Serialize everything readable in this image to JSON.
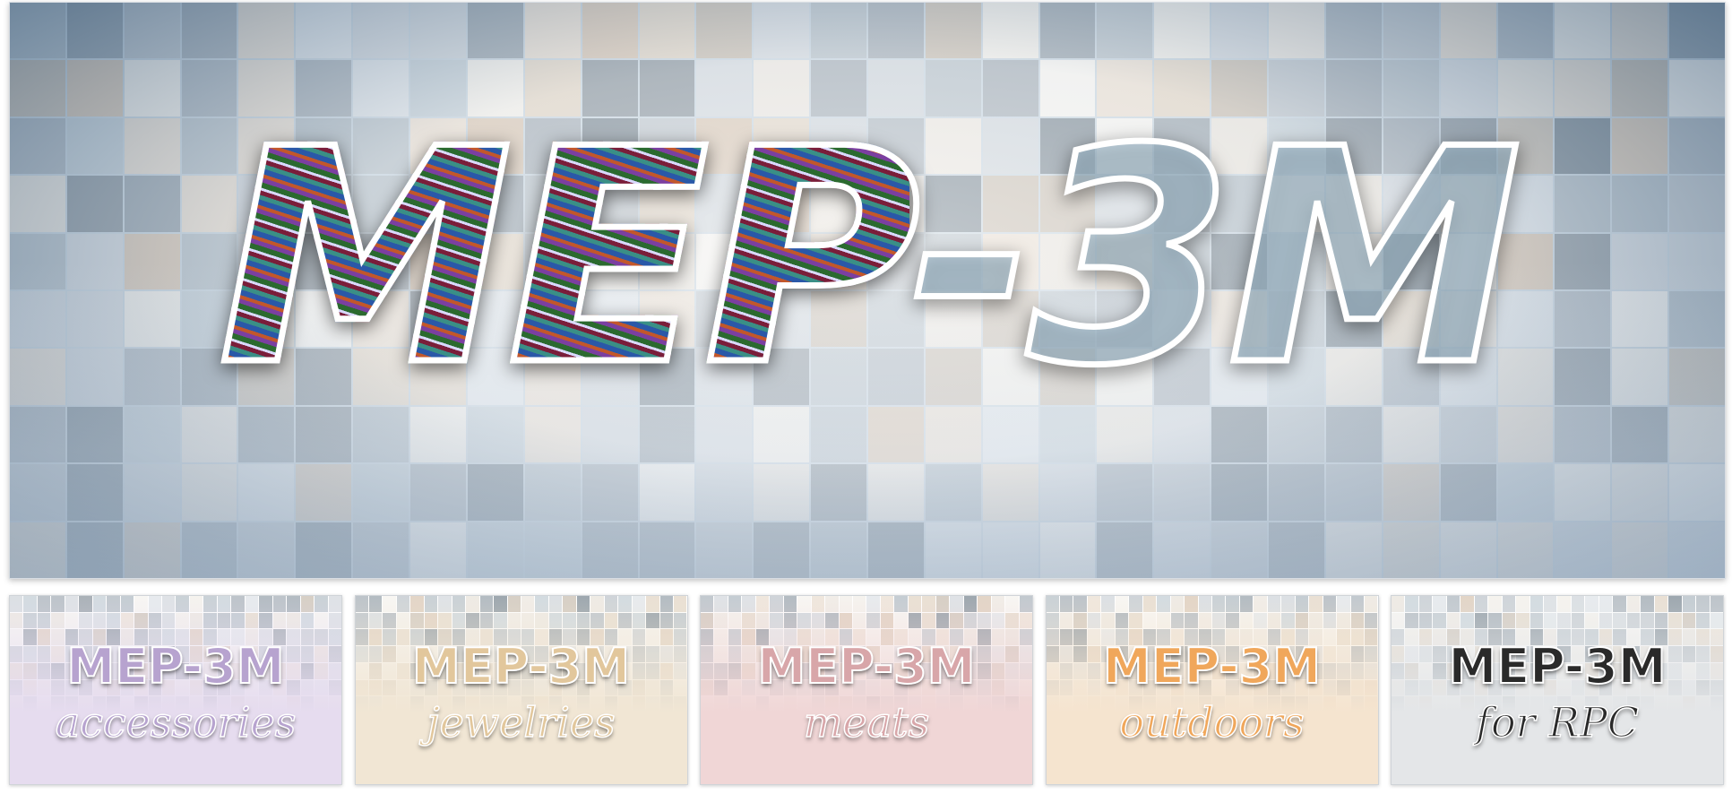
{
  "hero": {
    "title_left": "MEP",
    "title_right": "-3M",
    "title_fill_colors": [
      "#2b6a2f",
      "#7b3fa0",
      "#c2572b",
      "#2a58a8",
      "#3a8f86",
      "#7a1e3a"
    ],
    "title_outline_color": "#ffffff",
    "edge_tint_color": "#1e5a8a"
  },
  "panels": [
    {
      "title": "MEP-3M",
      "subtitle": "accessories",
      "title_color": "#b7a3cf",
      "wash_color": "#e6dcef"
    },
    {
      "title": "MEP-3M",
      "subtitle": "jewelries",
      "title_color": "#e2c79c",
      "wash_color": "#f1e6d4"
    },
    {
      "title": "MEP-3M",
      "subtitle": "meats",
      "title_color": "#d8a6a9",
      "wash_color": "#f0d6d6"
    },
    {
      "title": "MEP-3M",
      "subtitle": "outdoors",
      "title_color": "#f0a75b",
      "wash_color": "#f5e4cf"
    },
    {
      "title": "MEP-3M",
      "subtitle": "for RPC",
      "title_color": "#2a2a2a",
      "wash_color": "#e4e6e8"
    }
  ]
}
